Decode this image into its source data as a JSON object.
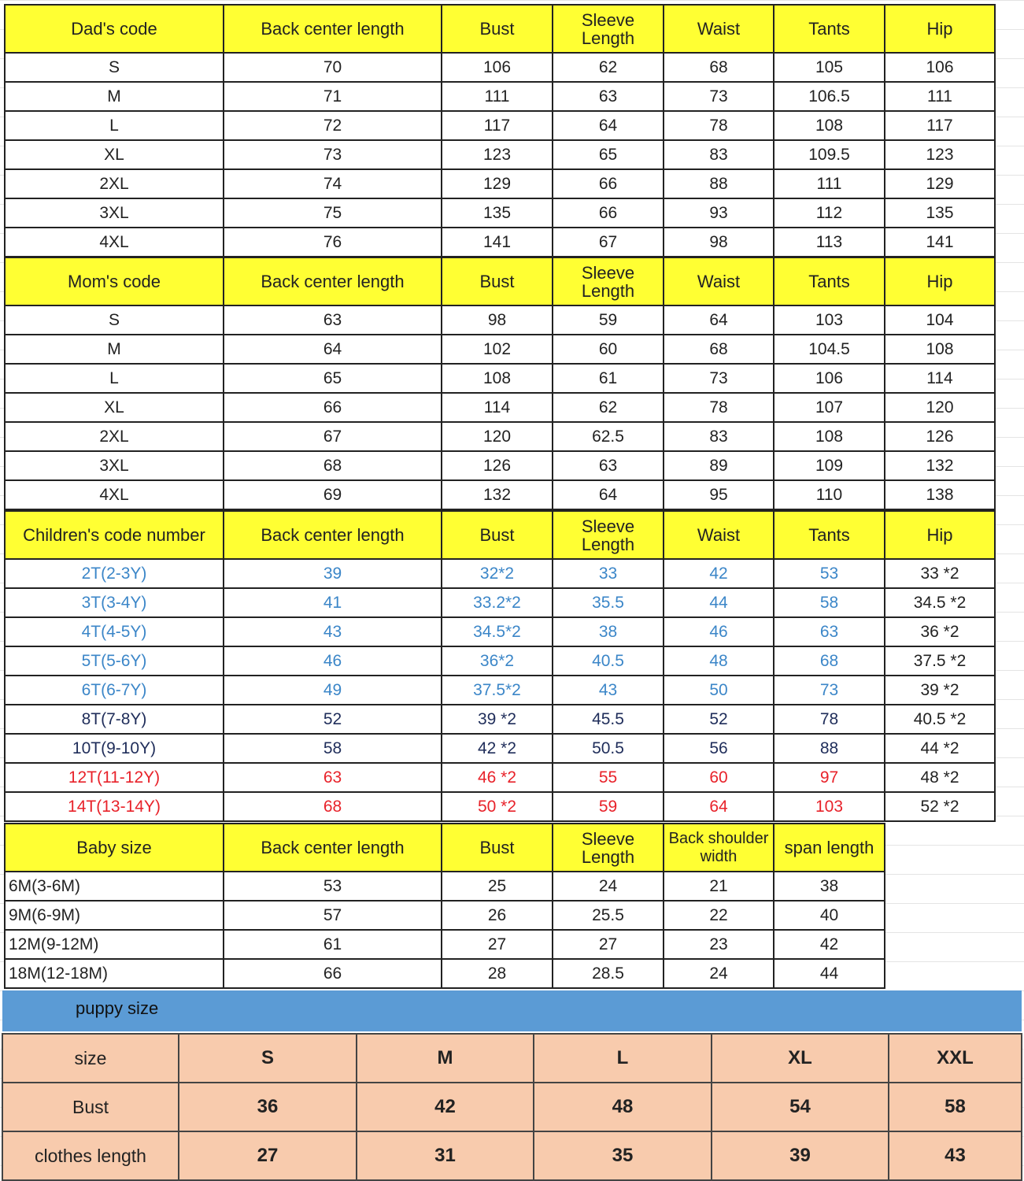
{
  "colors": {
    "header": "#ffff33",
    "blue": "#3b86c8",
    "navy": "#1f2d5a",
    "red": "#e8222a",
    "black": "#222222",
    "puppy_band": "#5b9bd5",
    "puppy_cell": "#f8cbad"
  },
  "sections": [
    {
      "id": "dad",
      "headers": [
        "Dad's code",
        "Back center length",
        "Bust",
        "Sleeve Length",
        "Waist",
        "Tants",
        "Hip"
      ],
      "rows": [
        {
          "cells": [
            "S",
            "70",
            "106",
            "62",
            "68",
            "105",
            "106"
          ]
        },
        {
          "cells": [
            "M",
            "71",
            "111",
            "63",
            "73",
            "106.5",
            "111"
          ]
        },
        {
          "cells": [
            "L",
            "72",
            "117",
            "64",
            "78",
            "108",
            "117"
          ]
        },
        {
          "cells": [
            "XL",
            "73",
            "123",
            "65",
            "83",
            "109.5",
            "123"
          ]
        },
        {
          "cells": [
            "2XL",
            "74",
            "129",
            "66",
            "88",
            "111",
            "129"
          ]
        },
        {
          "cells": [
            "3XL",
            "75",
            "135",
            "66",
            "93",
            "112",
            "135"
          ]
        },
        {
          "cells": [
            "4XL",
            "76",
            "141",
            "67",
            "98",
            "113",
            "141"
          ]
        }
      ]
    },
    {
      "id": "mom",
      "headers": [
        "Mom's code",
        "Back center length",
        "Bust",
        "Sleeve Length",
        "Waist",
        "Tants",
        "Hip"
      ],
      "rows": [
        {
          "cells": [
            "S",
            "63",
            "98",
            "59",
            "64",
            "103",
            "104"
          ]
        },
        {
          "cells": [
            "M",
            "64",
            "102",
            "60",
            "68",
            "104.5",
            "108"
          ]
        },
        {
          "cells": [
            "L",
            "65",
            "108",
            "61",
            "73",
            "106",
            "114"
          ]
        },
        {
          "cells": [
            "XL",
            "66",
            "114",
            "62",
            "78",
            "107",
            "120"
          ]
        },
        {
          "cells": [
            "2XL",
            "67",
            "120",
            "62.5",
            "83",
            "108",
            "126"
          ]
        },
        {
          "cells": [
            "3XL",
            "68",
            "126",
            "63",
            "89",
            "109",
            "132"
          ]
        },
        {
          "cells": [
            "4XL",
            "69",
            "132",
            "64",
            "95",
            "110",
            "138"
          ]
        }
      ]
    },
    {
      "id": "children",
      "headers": [
        "Children's code number",
        "Back center length",
        "Bust",
        "Sleeve Length",
        "Waist",
        "Tants",
        "Hip"
      ],
      "rows": [
        {
          "color": "blue",
          "cells": [
            "2T(2-3Y)",
            "39",
            "32*2",
            "33",
            "42",
            "53",
            "33 *2"
          ]
        },
        {
          "color": "blue",
          "cells": [
            "3T(3-4Y)",
            "41",
            "33.2*2",
            "35.5",
            "44",
            "58",
            "34.5 *2"
          ]
        },
        {
          "color": "blue",
          "cells": [
            "4T(4-5Y)",
            "43",
            "34.5*2",
            "38",
            "46",
            "63",
            "36 *2"
          ]
        },
        {
          "color": "blue",
          "cells": [
            "5T(5-6Y)",
            "46",
            "36*2",
            "40.5",
            "48",
            "68",
            "37.5 *2"
          ]
        },
        {
          "color": "blue",
          "cells": [
            "6T(6-7Y)",
            "49",
            "37.5*2",
            "43",
            "50",
            "73",
            "39 *2"
          ]
        },
        {
          "color": "navy",
          "cells": [
            "8T(7-8Y)",
            "52",
            "39 *2",
            "45.5",
            "52",
            "78",
            "40.5 *2"
          ]
        },
        {
          "color": "navy",
          "cells": [
            "10T(9-10Y)",
            "58",
            "42 *2",
            "50.5",
            "56",
            "88",
            "44 *2"
          ]
        },
        {
          "color": "red",
          "cells": [
            "12T(11-12Y)",
            "63",
            "46 *2",
            "55",
            "60",
            "97",
            "48 *2"
          ]
        },
        {
          "color": "red",
          "cells": [
            "14T(13-14Y)",
            "68",
            "50 *2",
            "59",
            "64",
            "103",
            "52 *2"
          ]
        }
      ]
    },
    {
      "id": "baby",
      "headers": [
        "Baby size",
        "Back center length",
        "Bust",
        "Sleeve Length",
        "Back shoulder width",
        "span length"
      ],
      "rows": [
        {
          "cells": [
            "6M(3-6M)",
            "53",
            "25",
            "24",
            "21",
            "38"
          ]
        },
        {
          "cells": [
            "9M(6-9M)",
            "57",
            "26",
            "25.5",
            "22",
            "40"
          ]
        },
        {
          "cells": [
            "12M(9-12M)",
            "61",
            "27",
            "27",
            "23",
            "42"
          ]
        },
        {
          "cells": [
            "18M(12-18M)",
            "66",
            "28",
            "28.5",
            "24",
            "44"
          ]
        }
      ]
    }
  ],
  "puppy": {
    "title": "puppy size",
    "rows": [
      {
        "cells": [
          "size",
          "S",
          "M",
          "L",
          "XL",
          "XXL"
        ]
      },
      {
        "cells": [
          "Bust",
          "36",
          "42",
          "48",
          "54",
          "58"
        ]
      },
      {
        "cells": [
          "clothes length",
          "27",
          "31",
          "35",
          "39",
          "43"
        ]
      }
    ]
  }
}
